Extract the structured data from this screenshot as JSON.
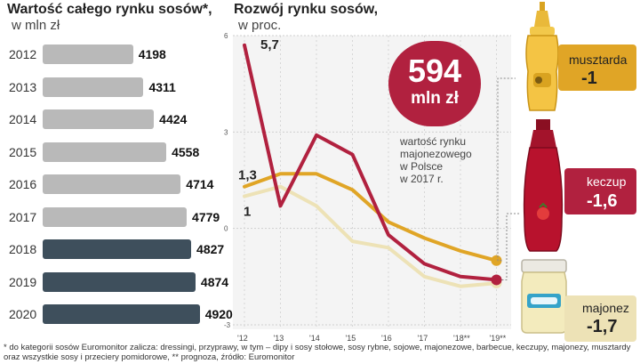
{
  "chart_data": [
    {
      "type": "bar",
      "title": "Wartość całego rynku sosów*,",
      "subtitle": "w mln zł",
      "categories": [
        "2012",
        "2013",
        "2014",
        "2015",
        "2016",
        "2017",
        "2018",
        "2019",
        "2020"
      ],
      "values": [
        4198,
        4311,
        4424,
        4558,
        4714,
        4779,
        4827,
        4874,
        4920
      ],
      "colors": {
        "actual": "#b9b9b9",
        "forecast": "#3e4f5c"
      },
      "forecast_from": "2018"
    },
    {
      "type": "line",
      "title": "Rozwój rynku sosów,",
      "subtitle": "w proc.",
      "x": [
        "'12",
        "'13",
        "'14",
        "'15",
        "'16",
        "'17",
        "'18**",
        "'19**"
      ],
      "ylim": [
        -3,
        6
      ],
      "yticks": [
        "6",
        "3",
        "0",
        "-3"
      ],
      "series": [
        {
          "name": "musztarda",
          "color": "#e0a526",
          "values": [
            1.3,
            1.7,
            1.7,
            1.2,
            0.2,
            -0.3,
            -0.7,
            -1.0
          ],
          "end_label": "-1"
        },
        {
          "name": "keczup",
          "color": "#b1213f",
          "values": [
            5.7,
            0.7,
            2.9,
            2.3,
            -0.2,
            -1.1,
            -1.5,
            -1.6
          ],
          "end_label": "-1,6"
        },
        {
          "name": "majonez",
          "color": "#ede2b6",
          "values": [
            1.0,
            1.3,
            0.7,
            -0.4,
            -0.6,
            -1.5,
            -1.8,
            -1.7
          ],
          "end_label": "-1,7"
        }
      ],
      "data_labels": {
        "first_high": "1,3",
        "first_low": "1",
        "peak": "5,7"
      }
    }
  ],
  "header": {
    "left_title": "Wartość całego rynku sosów*,",
    "left_subtitle": "w mln zł",
    "right_title": "Rozwój rynku sosów,",
    "right_subtitle": "w proc."
  },
  "callout": {
    "value": "594",
    "unit": "mln zł",
    "color": "#b1213f",
    "caption": [
      "wartość rynku",
      "majonezowego",
      "w Polsce",
      "w 2017 r."
    ]
  },
  "products": [
    {
      "name": "musztarda",
      "value": "-1",
      "color": "#e0a526",
      "icon": "mustard-bottle-icon"
    },
    {
      "name": "keczup",
      "value": "-1,6",
      "color": "#b1213f",
      "icon": "ketchup-bottle-icon"
    },
    {
      "name": "majonez",
      "value": "-1,7",
      "color": "#ede2b6",
      "icon": "mayonnaise-jar-icon"
    }
  ],
  "footnote": "* do kategorii sosów Euromonitor zalicza: dressingi, przyprawy, w tym – dipy i sosy stołowe, sosy rybne, sojowe, majonezowe, barbecue, keczupy, majonezy, musztardy oraz wszystkie sosy i przeciery pomidorowe, ** prognoza, źródło: Euromonitor"
}
